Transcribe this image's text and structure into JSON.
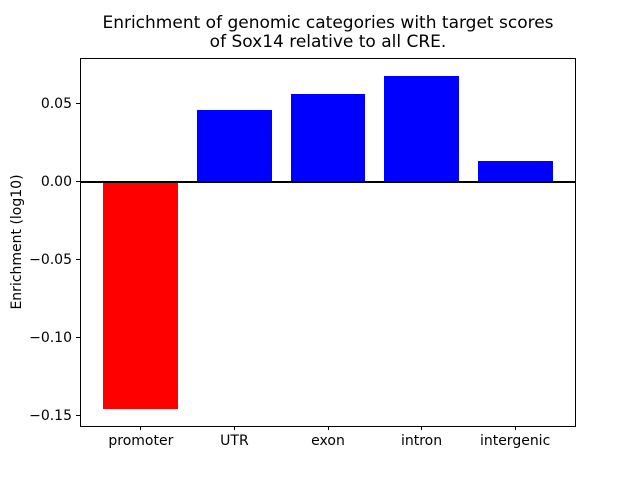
{
  "window": {
    "background": "#ffffff"
  },
  "chart_data": {
    "type": "bar",
    "title": "Enrichment of genomic categories with target scores\nof Sox14 relative to all CRE.",
    "xlabel": "",
    "ylabel": "Enrichment (log10)",
    "categories": [
      "promoter",
      "UTR",
      "exon",
      "intron",
      "intergenic"
    ],
    "values": [
      -0.146,
      0.046,
      0.056,
      0.068,
      0.013
    ],
    "bar_colors": [
      "#ff0000",
      "#0000ff",
      "#0000ff",
      "#0000ff",
      "#0000ff"
    ],
    "bar_width": 0.8,
    "xlim": [
      -0.64,
      4.64
    ],
    "ylim": [
      -0.1567,
      0.0787
    ],
    "yticks": [
      {
        "value": 0.05,
        "label": "0.05"
      },
      {
        "value": 0.0,
        "label": "0.00"
      },
      {
        "value": -0.05,
        "label": "−0.05"
      },
      {
        "value": -0.1,
        "label": "−0.10"
      },
      {
        "value": -0.15,
        "label": "−0.15"
      }
    ],
    "axhline": 0,
    "grid": false,
    "legend": "none",
    "frame": "full-box",
    "axis_color": "#000000",
    "text_color": "#000000"
  }
}
